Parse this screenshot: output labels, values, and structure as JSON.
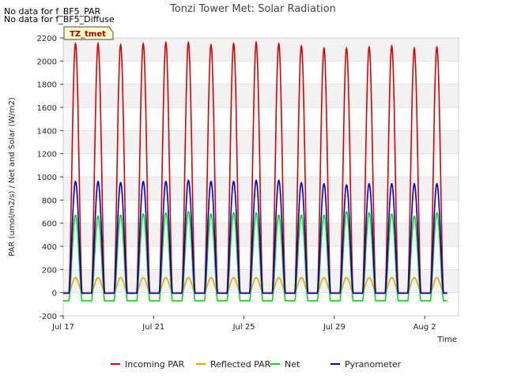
{
  "nodata": [
    "No data for f_BF5_PAR",
    "No data for f_BF5_Diffuse"
  ],
  "chart_data": {
    "type": "line",
    "title": "Tonzi Tower Met: Solar Radiation",
    "xlabel": "Time",
    "ylabel": "PAR (umol/m2/s) / Net and Solar (W/m2)",
    "legend_box_label": "TZ_tmet",
    "ylim": [
      -200,
      2200
    ],
    "yticks": [
      -200,
      0,
      200,
      400,
      600,
      800,
      1000,
      1200,
      1400,
      1600,
      1800,
      2000,
      2200
    ],
    "xlim": [
      "2023-07-17",
      "2023-08-03T12:00"
    ],
    "xticks": [
      {
        "label": "Jul 17",
        "date": "2023-07-17"
      },
      {
        "label": "Jul 21",
        "date": "2023-07-21"
      },
      {
        "label": "Jul 25",
        "date": "2023-07-25"
      },
      {
        "label": "Jul 29",
        "date": "2023-07-29"
      },
      {
        "label": "Aug 2",
        "date": "2023-08-02"
      }
    ],
    "days": [
      "2023-07-17",
      "2023-07-18",
      "2023-07-19",
      "2023-07-20",
      "2023-07-21",
      "2023-07-22",
      "2023-07-23",
      "2023-07-24",
      "2023-07-25",
      "2023-07-26",
      "2023-07-27",
      "2023-07-28",
      "2023-07-29",
      "2023-07-30",
      "2023-07-31",
      "2023-08-01",
      "2023-08-02"
    ],
    "series": [
      {
        "name": "Incoming PAR",
        "color": "#dd0000",
        "night": 0,
        "daily_peak": [
          2150,
          2150,
          2140,
          2150,
          2160,
          2160,
          2140,
          2150,
          2160,
          2150,
          2130,
          2110,
          2110,
          2120,
          2130,
          2110,
          2120
        ]
      },
      {
        "name": "Reflected PAR",
        "color": "#f0a000",
        "night": 0,
        "daily_peak": [
          130,
          130,
          130,
          130,
          130,
          130,
          130,
          130,
          130,
          130,
          130,
          130,
          130,
          130,
          130,
          130,
          130
        ]
      },
      {
        "name": "Net",
        "color": "#00dd00",
        "night": -70,
        "daily_peak": [
          670,
          660,
          670,
          680,
          690,
          700,
          680,
          690,
          690,
          670,
          670,
          670,
          700,
          690,
          680,
          660,
          690
        ]
      },
      {
        "name": "Pyranometer",
        "color": "#0000cc",
        "night": -5,
        "daily_peak": [
          960,
          960,
          950,
          960,
          960,
          970,
          960,
          960,
          970,
          970,
          950,
          940,
          930,
          940,
          940,
          940,
          940
        ]
      }
    ]
  }
}
